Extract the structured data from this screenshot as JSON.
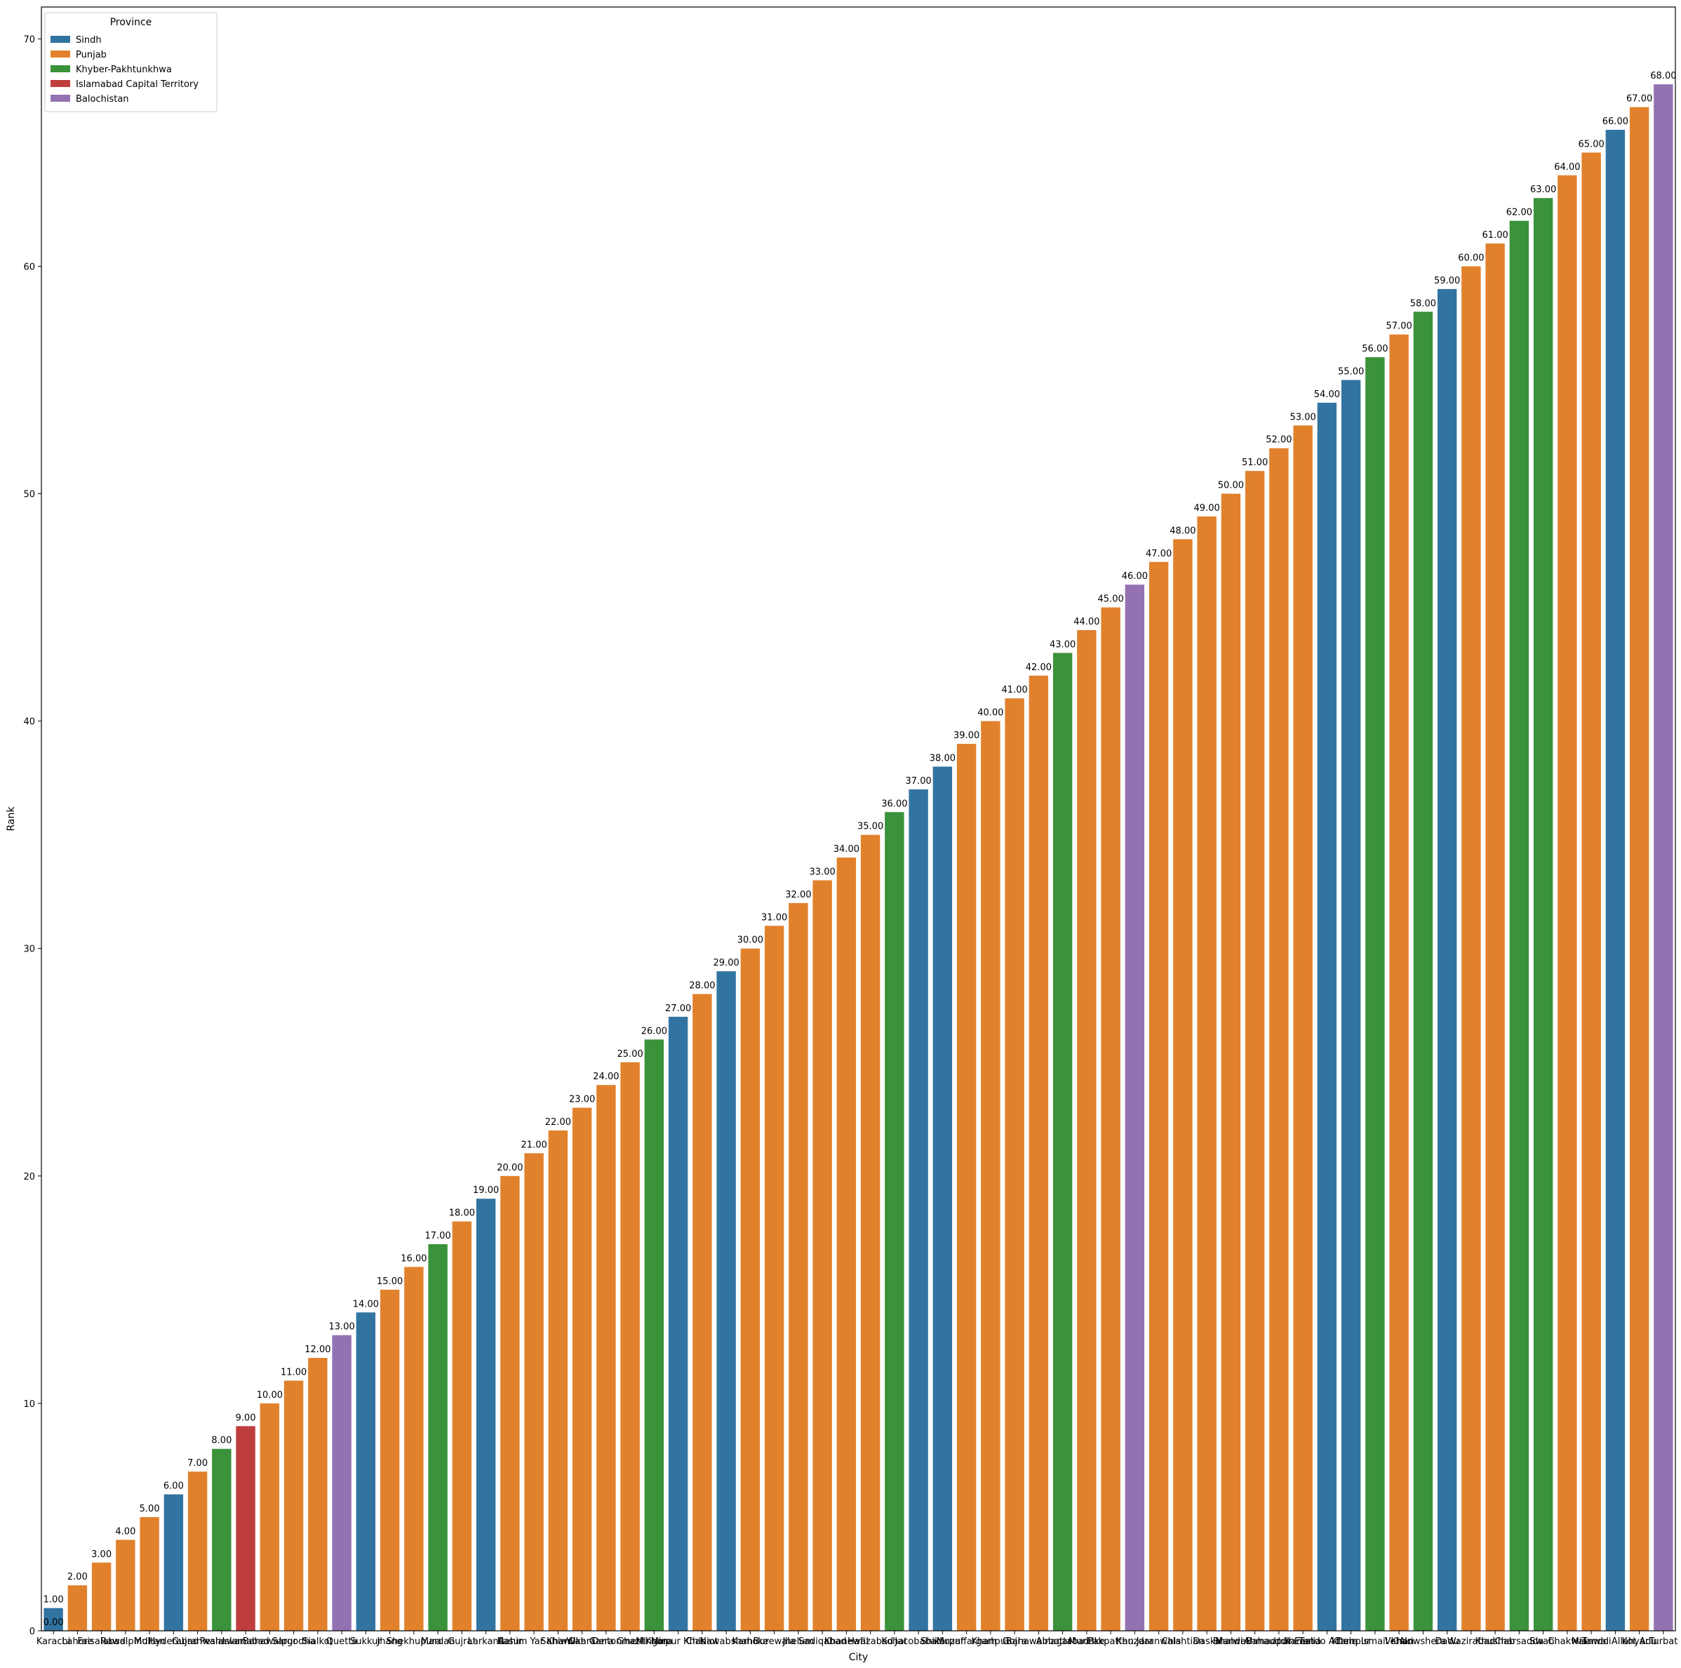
{
  "chart_data": {
    "type": "bar",
    "title": "",
    "xlabel": "City",
    "ylabel": "Rank",
    "ylim": [
      0,
      71.4
    ],
    "yticks": [
      0,
      10,
      20,
      30,
      40,
      50,
      60,
      70
    ],
    "grid": false,
    "legend": {
      "title": "Province",
      "placement": "top-left",
      "entries": [
        {
          "name": "Sindh",
          "color": "#3274a1"
        },
        {
          "name": "Punjab",
          "color": "#e1812c"
        },
        {
          "name": "Khyber-Pakhtunkhwa",
          "color": "#3a923a"
        },
        {
          "name": "Islamabad Capital Territory",
          "color": "#c03d3e"
        },
        {
          "name": "Balochistan",
          "color": "#9372b2"
        }
      ]
    },
    "extra_labels": [
      {
        "text": "0.00",
        "category_index": 0,
        "value": 0
      }
    ],
    "bars": [
      {
        "city": "Karachi",
        "province": "Sindh",
        "value": 1,
        "label": "1.00"
      },
      {
        "city": "Lahore",
        "province": "Punjab",
        "value": 2,
        "label": "2.00"
      },
      {
        "city": "Faisalabad",
        "province": "Punjab",
        "value": 3,
        "label": "3.00"
      },
      {
        "city": "Rawalpindi",
        "province": "Punjab",
        "value": 4,
        "label": "4.00"
      },
      {
        "city": "Multan",
        "province": "Punjab",
        "value": 5,
        "label": "5.00"
      },
      {
        "city": "Hyderabad",
        "province": "Sindh",
        "value": 6,
        "label": "6.00"
      },
      {
        "city": "Gujranwala",
        "province": "Punjab",
        "value": 7,
        "label": "7.00"
      },
      {
        "city": "Peshawar",
        "province": "Khyber-Pakhtunkhwa",
        "value": 8,
        "label": "8.00"
      },
      {
        "city": "Islamabad",
        "province": "Islamabad Capital Territory",
        "value": 9,
        "label": "9.00"
      },
      {
        "city": "Bahawalpur",
        "province": "Punjab",
        "value": 10,
        "label": "10.00"
      },
      {
        "city": "Sargodha",
        "province": "Punjab",
        "value": 11,
        "label": "11.00"
      },
      {
        "city": "Sialkot",
        "province": "Punjab",
        "value": 12,
        "label": "12.00"
      },
      {
        "city": "Quetta",
        "province": "Balochistan",
        "value": 13,
        "label": "13.00"
      },
      {
        "city": "Sukkur",
        "province": "Sindh",
        "value": 14,
        "label": "14.00"
      },
      {
        "city": "Jhang",
        "province": "Punjab",
        "value": 15,
        "label": "15.00"
      },
      {
        "city": "Shekhupura",
        "province": "Punjab",
        "value": 16,
        "label": "16.00"
      },
      {
        "city": "Mardan",
        "province": "Khyber-Pakhtunkhwa",
        "value": 17,
        "label": "17.00"
      },
      {
        "city": "Gujrat",
        "province": "Punjab",
        "value": 18,
        "label": "18.00"
      },
      {
        "city": "Larkana",
        "province": "Sindh",
        "value": 19,
        "label": "19.00"
      },
      {
        "city": "Kasur",
        "province": "Punjab",
        "value": 20,
        "label": "20.00"
      },
      {
        "city": "Rahim Yar Khan",
        "province": "Punjab",
        "value": 21,
        "label": "21.00"
      },
      {
        "city": "Sahiwal",
        "province": "Punjab",
        "value": 22,
        "label": "22.00"
      },
      {
        "city": "Okara",
        "province": "Punjab",
        "value": 23,
        "label": "23.00"
      },
      {
        "city": "Wah Cantonment",
        "province": "Punjab",
        "value": 24,
        "label": "24.00"
      },
      {
        "city": "Dera Ghazi Khan",
        "province": "Punjab",
        "value": 25,
        "label": "25.00"
      },
      {
        "city": "Mingora",
        "province": "Khyber-Pakhtunkhwa",
        "value": 26,
        "label": "26.00"
      },
      {
        "city": "Mirpur Khas",
        "province": "Sindh",
        "value": 27,
        "label": "27.00"
      },
      {
        "city": "Chiniot",
        "province": "Punjab",
        "value": 28,
        "label": "28.00"
      },
      {
        "city": "Nawabshah",
        "province": "Sindh",
        "value": 29,
        "label": "29.00"
      },
      {
        "city": "Kamoke",
        "province": "Punjab",
        "value": 30,
        "label": "30.00"
      },
      {
        "city": "Burewala",
        "province": "Punjab",
        "value": 31,
        "label": "31.00"
      },
      {
        "city": "Jhelum",
        "province": "Punjab",
        "value": 32,
        "label": "32.00"
      },
      {
        "city": "Sadiqabad",
        "province": "Punjab",
        "value": 33,
        "label": "33.00"
      },
      {
        "city": "Khanewal",
        "province": "Punjab",
        "value": 34,
        "label": "34.00"
      },
      {
        "city": "Hafizabad",
        "province": "Punjab",
        "value": 35,
        "label": "35.00"
      },
      {
        "city": "Kohat",
        "province": "Khyber-Pakhtunkhwa",
        "value": 36,
        "label": "36.00"
      },
      {
        "city": "Jacobabad",
        "province": "Sindh",
        "value": 37,
        "label": "37.00"
      },
      {
        "city": "Shikarpur",
        "province": "Sindh",
        "value": 38,
        "label": "38.00"
      },
      {
        "city": "Muzaffargarh",
        "province": "Punjab",
        "value": 39,
        "label": "39.00"
      },
      {
        "city": "Khanpur",
        "province": "Punjab",
        "value": 40,
        "label": "40.00"
      },
      {
        "city": "Gojra",
        "province": "Punjab",
        "value": 41,
        "label": "41.00"
      },
      {
        "city": "Bahawalnagar",
        "province": "Punjab",
        "value": 42,
        "label": "42.00"
      },
      {
        "city": "Abbottabad",
        "province": "Khyber-Pakhtunkhwa",
        "value": 43,
        "label": "43.00"
      },
      {
        "city": "Muridke",
        "province": "Punjab",
        "value": 44,
        "label": "44.00"
      },
      {
        "city": "Pakpattan",
        "province": "Punjab",
        "value": 45,
        "label": "45.00"
      },
      {
        "city": "Khuzdar",
        "province": "Balochistan",
        "value": 46,
        "label": "46.00"
      },
      {
        "city": "Jaranwala",
        "province": "Punjab",
        "value": 47,
        "label": "47.00"
      },
      {
        "city": "Chishtian",
        "province": "Punjab",
        "value": 48,
        "label": "48.00"
      },
      {
        "city": "Daska",
        "province": "Punjab",
        "value": 49,
        "label": "49.00"
      },
      {
        "city": "Bhalwal",
        "province": "Punjab",
        "value": 50,
        "label": "50.00"
      },
      {
        "city": "Mandi Bahauddin",
        "province": "Punjab",
        "value": 51,
        "label": "51.00"
      },
      {
        "city": "Ahmadpur East",
        "province": "Punjab",
        "value": 52,
        "label": "52.00"
      },
      {
        "city": "Kamalia",
        "province": "Punjab",
        "value": 53,
        "label": "53.00"
      },
      {
        "city": "Tando Adam",
        "province": "Sindh",
        "value": 54,
        "label": "54.00"
      },
      {
        "city": "Khairpur",
        "province": "Sindh",
        "value": 55,
        "label": "55.00"
      },
      {
        "city": "Dera Ismail Khan",
        "province": "Khyber-Pakhtunkhwa",
        "value": 56,
        "label": "56.00"
      },
      {
        "city": "Vehari",
        "province": "Punjab",
        "value": 57,
        "label": "57.00"
      },
      {
        "city": "Nowshera",
        "province": "Khyber-Pakhtunkhwa",
        "value": 58,
        "label": "58.00"
      },
      {
        "city": "Dadu",
        "province": "Sindh",
        "value": 59,
        "label": "59.00"
      },
      {
        "city": "Wazirabad",
        "province": "Punjab",
        "value": 60,
        "label": "60.00"
      },
      {
        "city": "Khushab",
        "province": "Punjab",
        "value": 61,
        "label": "61.00"
      },
      {
        "city": "Charsadda",
        "province": "Khyber-Pakhtunkhwa",
        "value": 62,
        "label": "62.00"
      },
      {
        "city": "Swabi",
        "province": "Khyber-Pakhtunkhwa",
        "value": 63,
        "label": "63.00"
      },
      {
        "city": "Chakwal",
        "province": "Punjab",
        "value": 64,
        "label": "64.00"
      },
      {
        "city": "Mianwali",
        "province": "Punjab",
        "value": 65,
        "label": "65.00"
      },
      {
        "city": "Tando Allahyar",
        "province": "Sindh",
        "value": 66,
        "label": "66.00"
      },
      {
        "city": "Kot Adu",
        "province": "Punjab",
        "value": 67,
        "label": "67.00"
      },
      {
        "city": "Turbat",
        "province": "Balochistan",
        "value": 68,
        "label": "68.00"
      }
    ]
  }
}
